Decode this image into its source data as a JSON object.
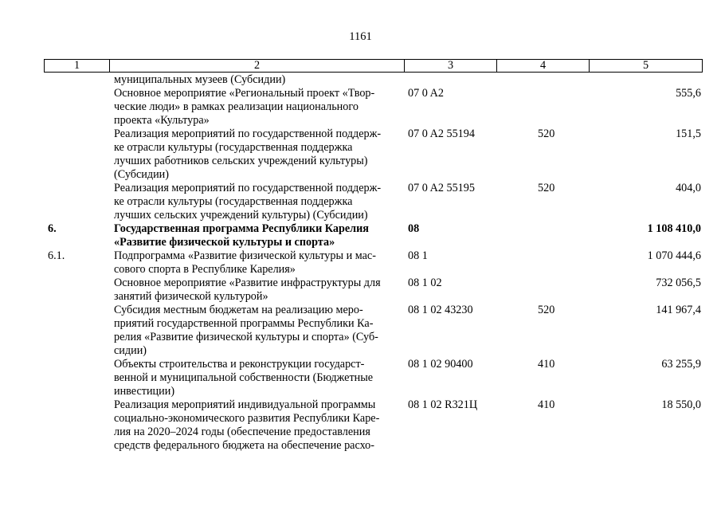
{
  "page_number": "1161",
  "columns": [
    "1",
    "2",
    "3",
    "4",
    "5"
  ],
  "rows": [
    {
      "num": "",
      "name": "муниципальных музеев (Субсидии)",
      "code": "",
      "type": "",
      "amount": "",
      "bold": false
    },
    {
      "num": "",
      "name": "Основное мероприятие «Региональный проект «Твор-\nческие люди» в рамках реализации национального\nпроекта «Культура»",
      "code": "07 0 A2",
      "type": "",
      "amount": "555,6",
      "bold": false
    },
    {
      "num": "",
      "name": "Реализация мероприятий по государственной поддерж-\nке отрасли культуры (государственная поддержка\nлучших работников сельских учреждений культуры)\n(Субсидии)",
      "code": "07 0 A2 55194",
      "type": "520",
      "amount": "151,5",
      "bold": false
    },
    {
      "num": "",
      "name": "Реализация мероприятий по государственной поддерж-\nке отрасли культуры (государственная поддержка\nлучших сельских учреждений культуры) (Субсидии)",
      "code": "07 0 A2 55195",
      "type": "520",
      "amount": "404,0",
      "bold": false
    },
    {
      "num": "6.",
      "name": "Государственная программа Республики Карелия\n«Развитие физической культуры и спорта»",
      "code": "08",
      "type": "",
      "amount": "1 108 410,0",
      "bold": true
    },
    {
      "num": "6.1.",
      "name": "Подпрограмма «Развитие физической культуры и мас-\nсового спорта в Республике Карелия»",
      "code": "08 1",
      "type": "",
      "amount": "1 070 444,6",
      "bold": false
    },
    {
      "num": "",
      "name": "Основное мероприятие «Развитие инфраструктуры для\nзанятий физической культурой»",
      "code": "08 1 02",
      "type": "",
      "amount": "732 056,5",
      "bold": false
    },
    {
      "num": "",
      "name": "Субсидия местным бюджетам на реализацию меро-\nприятий государственной программы Республики Ка-\nрелия «Развитие физической культуры и спорта» (Суб-\nсидии)",
      "code": "08 1 02 43230",
      "type": "520",
      "amount": "141 967,4",
      "bold": false
    },
    {
      "num": "",
      "name": "Объекты строительства и реконструкции государст-\nвенной и муниципальной собственности (Бюджетные\nинвестиции)",
      "code": "08 1 02 90400",
      "type": "410",
      "amount": "63 255,9",
      "bold": false
    },
    {
      "num": "",
      "name": "Реализация мероприятий индивидуальной программы\nсоциально-экономического развития Республики Каре-\nлия на 2020–2024 годы (обеспечение предоставления\nсредств федерального бюджета на обеспечение расхо-",
      "code": "08 1 02 R321Ц",
      "type": "410",
      "amount": "18 550,0",
      "bold": false
    }
  ]
}
